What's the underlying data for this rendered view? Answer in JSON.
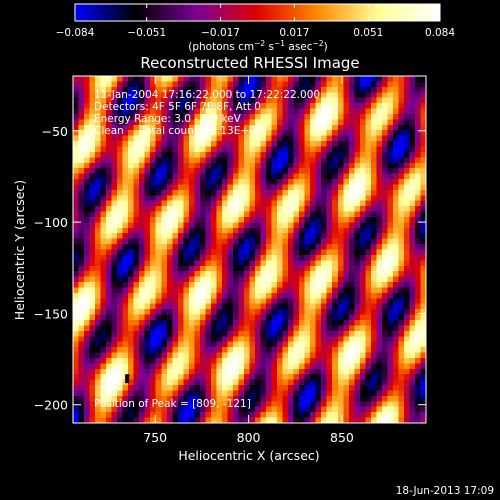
{
  "chart_data": {
    "type": "heatmap",
    "title": "Reconstructed RHESSI Image",
    "xlabel": "Heliocentric X (arcsec)",
    "ylabel": "Heliocentric Y (arcsec)",
    "xlim": [
      706,
      895
    ],
    "ylim": [
      -210,
      -20
    ],
    "x_ticks": [
      750,
      800,
      850
    ],
    "x_tick_labels": [
      "750",
      "800",
      "850"
    ],
    "y_ticks": [
      -50,
      -100,
      -150,
      -200
    ],
    "y_tick_labels": [
      "−50",
      "−100",
      "−150",
      "−200"
    ],
    "colorbar": {
      "range": [
        -0.084,
        0.084
      ],
      "ticks": [
        -0.084,
        -0.051,
        -0.017,
        0.017,
        0.051,
        0.084
      ],
      "tick_labels": [
        "−0.084",
        "−0.051",
        "−0.017",
        "0.017",
        "0.051",
        "0.084"
      ],
      "unit_label": "(photons cm",
      "unit_sup1": "−2",
      "unit_mid": " s",
      "unit_sup2": "−1",
      "unit_end": " asec",
      "unit_sup3": "−2",
      "unit_close": ")",
      "colors": [
        "#0000ff",
        "#000000",
        "#7a0096",
        "#e10000",
        "#ff8c00",
        "#ffff9a",
        "#ffffff"
      ]
    },
    "annotations": [
      "11-Jan-2004 17:16:22.000 to 17:22:22.000",
      "Detectors: 4F 5F 6F 7F 8F, Att 0",
      "Energy Range: 3.0 - 6.0 keV",
      "Clean     Total counts: 1.13E+05"
    ],
    "peak_label": "Position of Peak = [809, -121]",
    "peak": [
      809,
      -121
    ],
    "markers": [
      [
        735,
        -186
      ],
      [
        863,
        -193
      ]
    ]
  },
  "footer": {
    "timestamp": "18-Jun-2013 17:09"
  }
}
